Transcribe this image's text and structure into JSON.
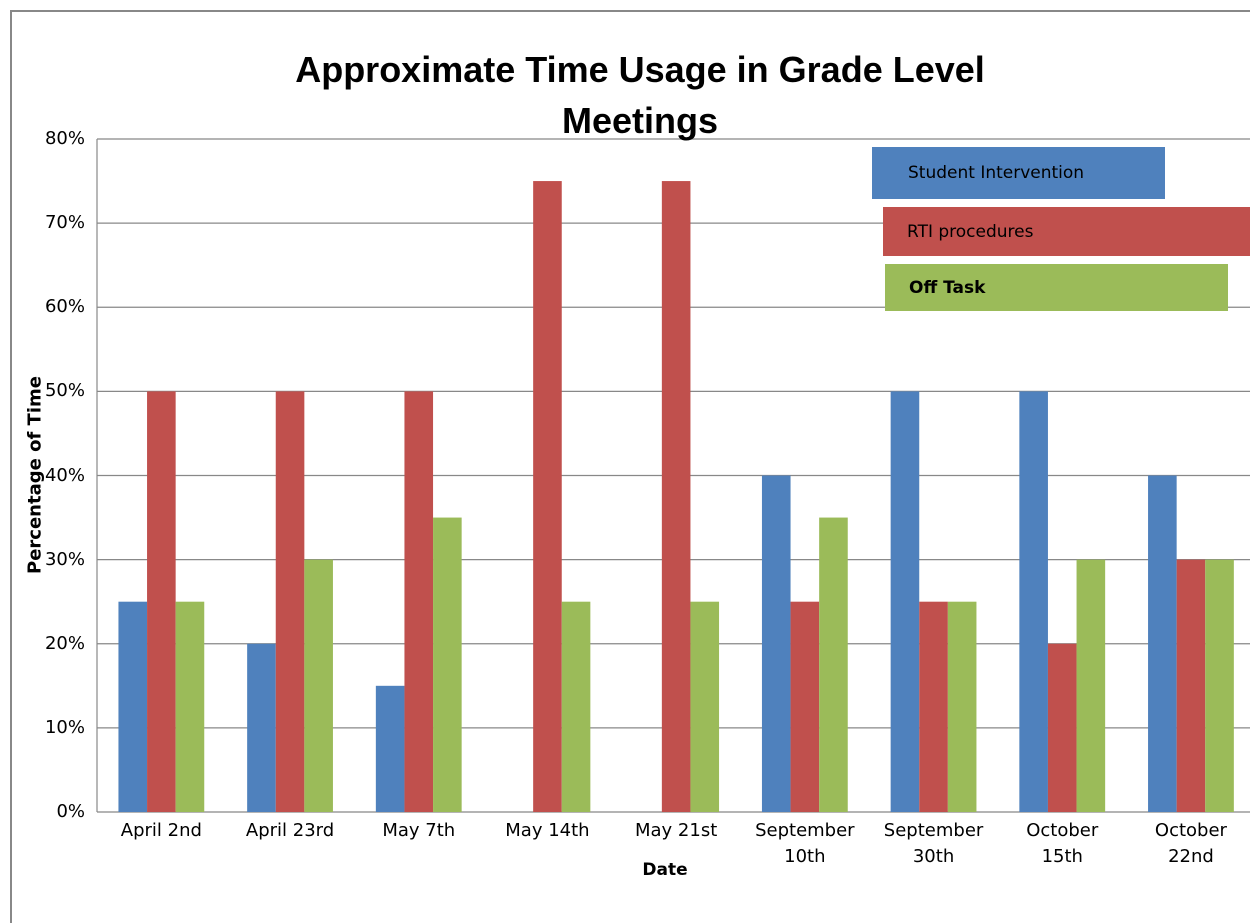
{
  "chart_data": {
    "type": "bar",
    "title": "Approximate Time Usage in Grade Level Meetings",
    "x_label": "Date",
    "y_label": "Percentage of Time",
    "categories": [
      "April 2nd",
      "April 23rd",
      "May 7th",
      "May 14th",
      "May 21st",
      "September 10th",
      "September 30th",
      "October 15th",
      "October 22nd"
    ],
    "series": [
      {
        "name": "Student Intervention",
        "color": "#4f81bd",
        "values": [
          25,
          20,
          15,
          0,
          0,
          40,
          50,
          50,
          40
        ]
      },
      {
        "name": "RTI procedures",
        "color": "#c0504d",
        "values": [
          50,
          50,
          50,
          75,
          75,
          25,
          25,
          20,
          30
        ]
      },
      {
        "name": "Off Task",
        "color": "#9bbb59",
        "values": [
          25,
          30,
          35,
          25,
          25,
          35,
          25,
          30,
          30
        ]
      }
    ],
    "ylim": [
      0,
      80
    ],
    "yticks": [
      {
        "value": 0,
        "label": "0%"
      },
      {
        "value": 10,
        "label": "10%"
      },
      {
        "value": 20,
        "label": "20%"
      },
      {
        "value": 30,
        "label": "30%"
      },
      {
        "value": 40,
        "label": "40%"
      },
      {
        "value": 50,
        "label": "50%"
      },
      {
        "value": 60,
        "label": "60%"
      },
      {
        "value": 70,
        "label": "70%"
      },
      {
        "value": 80,
        "label": "80%"
      }
    ],
    "grid": true
  }
}
